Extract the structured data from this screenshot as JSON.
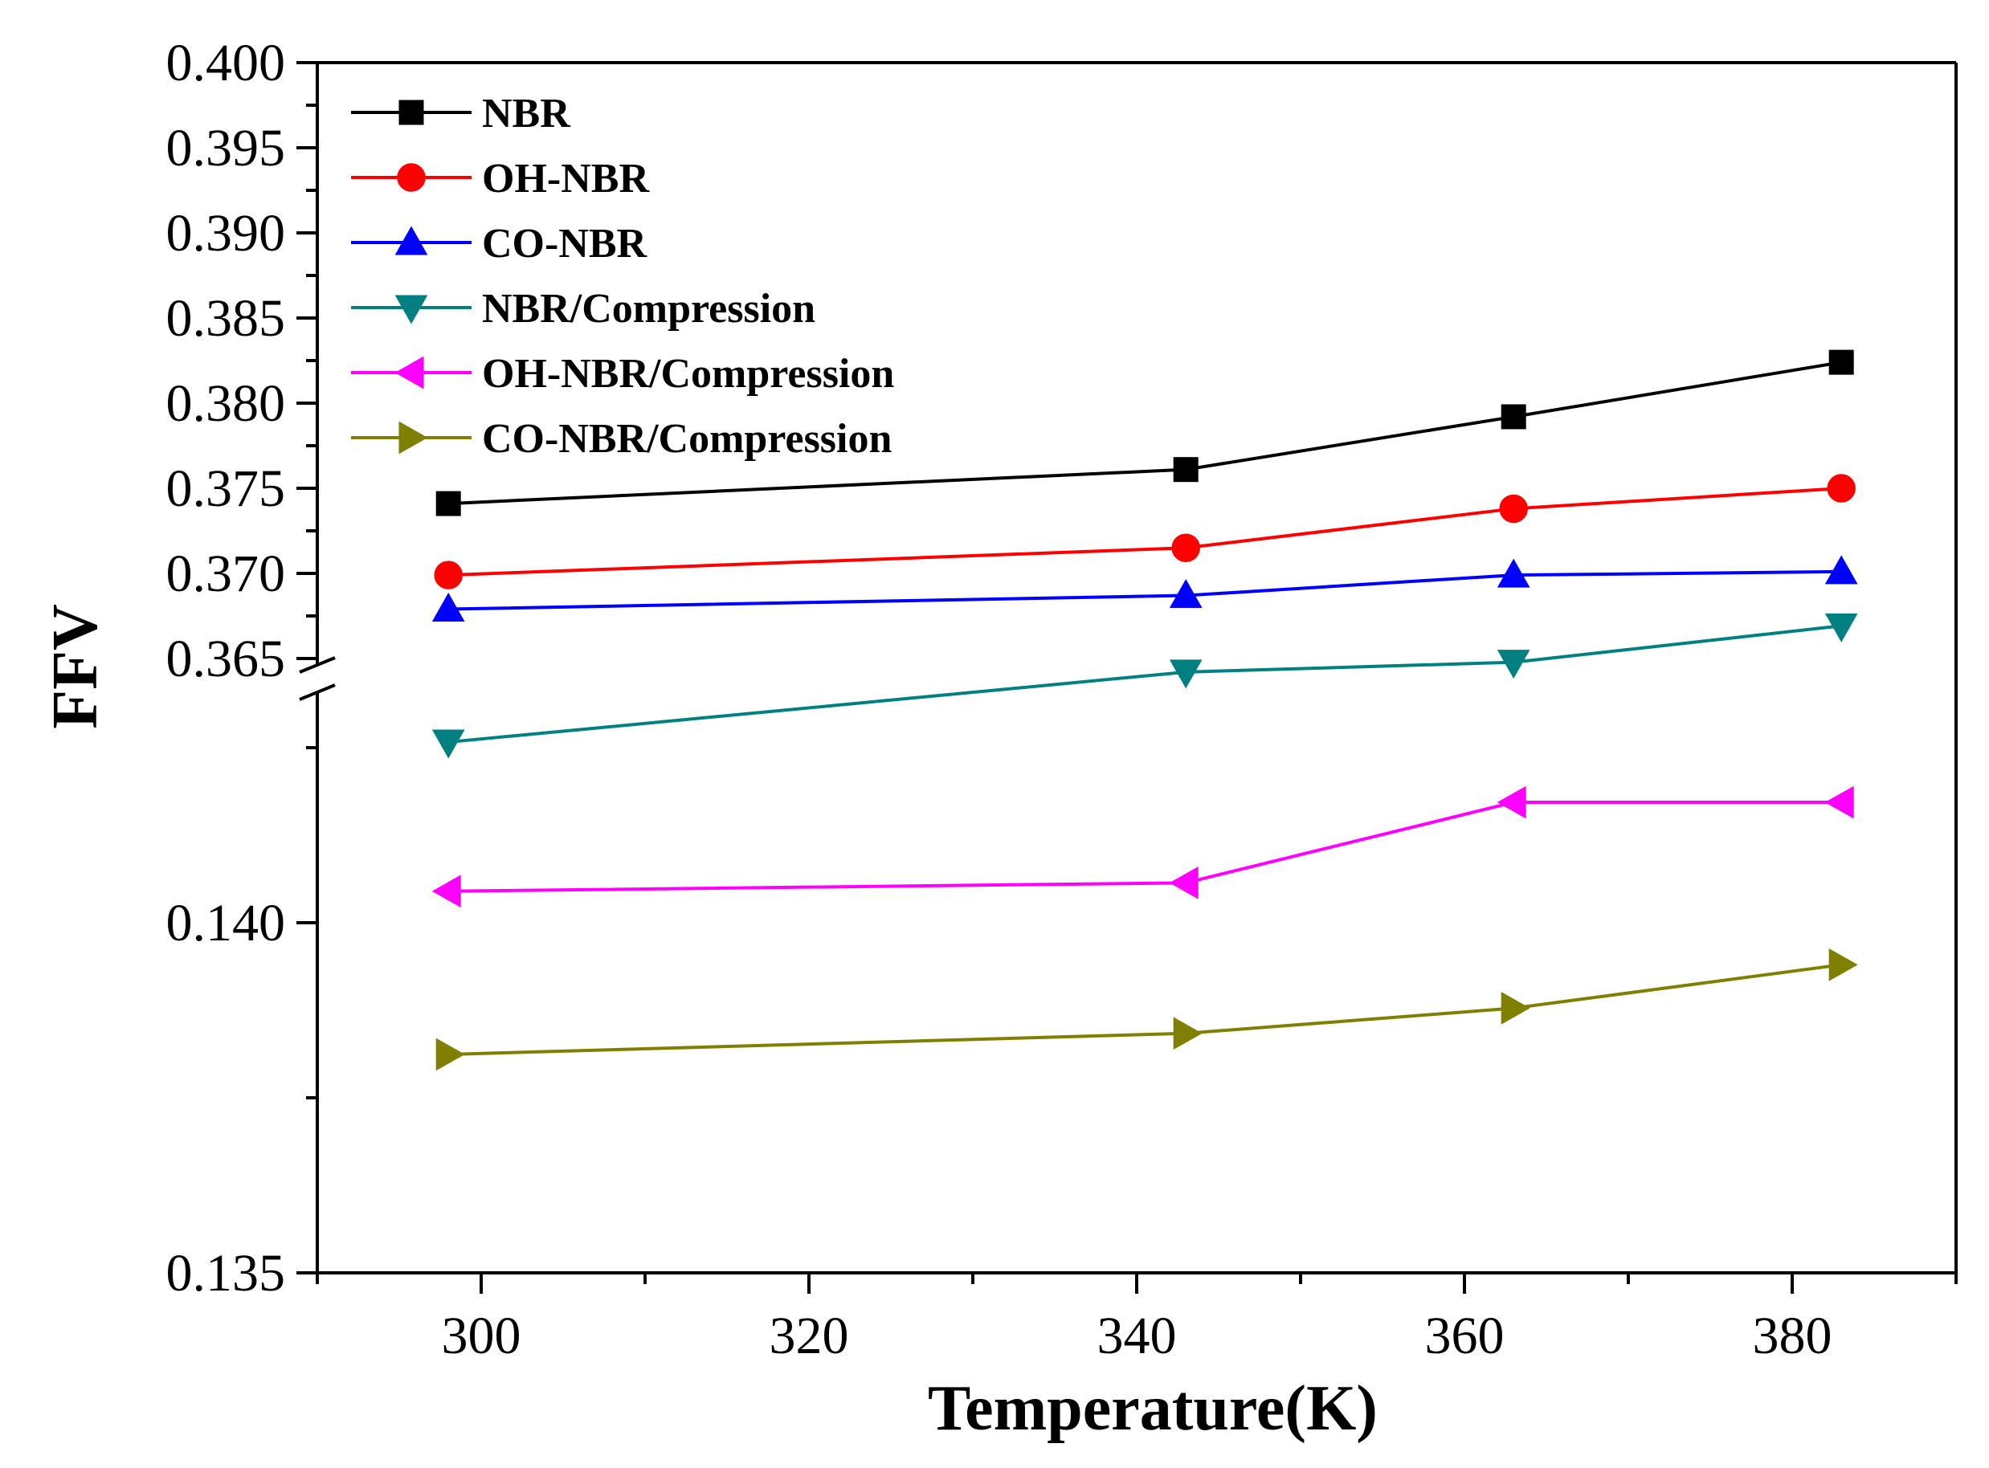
{
  "chart_data": {
    "type": "line",
    "title": "",
    "xlabel": "Temperature(K)",
    "ylabel": "FFV",
    "xlim": [
      290,
      390
    ],
    "x_ticks": [
      "300",
      "320",
      "340",
      "360",
      "380"
    ],
    "x_tick_values": [
      300,
      320,
      340,
      360,
      380
    ],
    "y_axis_broken": true,
    "y_segments": [
      {
        "name": "upper",
        "ylim": [
          0.365,
          0.4
        ],
        "ticks": [
          "0.365",
          "0.370",
          "0.375",
          "0.380",
          "0.385",
          "0.390",
          "0.395",
          "0.400"
        ],
        "tick_values": [
          0.365,
          0.37,
          0.375,
          0.38,
          0.385,
          0.39,
          0.395,
          0.4
        ]
      },
      {
        "name": "lower",
        "ylim": [
          0.135,
          0.1432
        ],
        "ticks": [
          "0.135",
          "0.140"
        ],
        "tick_values": [
          0.135,
          0.14
        ]
      }
    ],
    "legend_position": "top-left",
    "x": [
      298,
      343,
      363,
      383
    ],
    "series": [
      {
        "name": "NBR",
        "segment": "upper",
        "color": "#000000",
        "marker": "square",
        "values": [
          0.3741,
          0.3761,
          0.3792,
          0.3824
        ]
      },
      {
        "name": "OH-NBR",
        "segment": "upper",
        "color": "#ff0000",
        "marker": "circle",
        "values": [
          0.3699,
          0.3715,
          0.3738,
          0.375
        ]
      },
      {
        "name": "CO-NBR",
        "segment": "upper",
        "color": "#0000ff",
        "marker": "triangle-up",
        "values": [
          0.3679,
          0.3687,
          0.3699,
          0.3701
        ]
      },
      {
        "name": "NBR/Compression",
        "segment": "lower",
        "color": "#008080",
        "marker": "triangle-down",
        "values": [
          0.14258,
          0.14358,
          0.14372,
          0.14424
        ]
      },
      {
        "name": "OH-NBR/Compression",
        "segment": "lower",
        "color": "#ff00ff",
        "marker": "triangle-left",
        "values": [
          0.14045,
          0.14057,
          0.14172,
          0.14172
        ]
      },
      {
        "name": "CO-NBR/Compression",
        "segment": "lower",
        "color": "#808000",
        "marker": "triangle-right",
        "values": [
          0.13812,
          0.13842,
          0.13878,
          0.1394
        ]
      }
    ]
  }
}
